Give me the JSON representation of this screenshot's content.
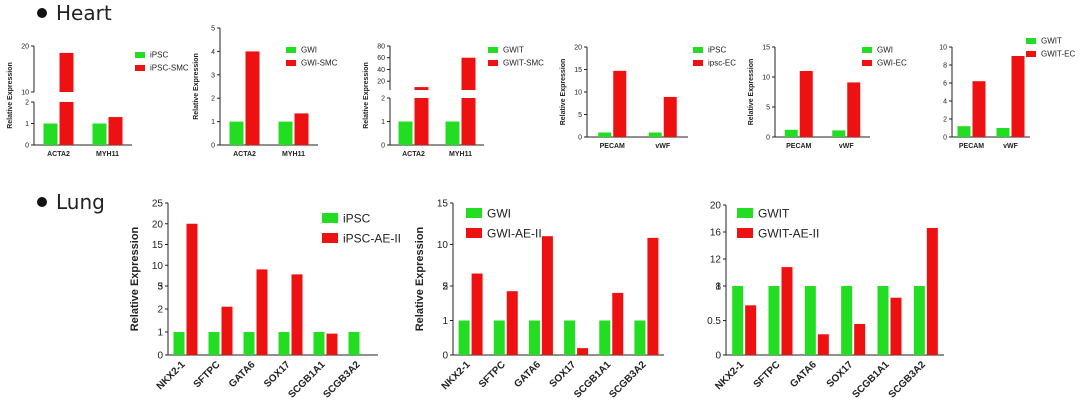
{
  "sections": [
    {
      "title": "Heart"
    },
    {
      "title": "Lung"
    }
  ],
  "colors": {
    "control": "#22dd22",
    "differentiated": "#ee1111",
    "axis": "#222222"
  },
  "chart_data": [
    {
      "type": "bar",
      "section": "Heart",
      "ylabel": "Relative Expression",
      "categories": [
        "ACTA2",
        "MYH11"
      ],
      "y_segments": [
        {
          "range": [
            0,
            2
          ],
          "ticks": [
            0,
            1,
            2
          ]
        },
        {
          "range": [
            10,
            20
          ],
          "ticks": [
            10,
            20
          ]
        }
      ],
      "series": [
        {
          "name": "iPSC",
          "values": [
            1,
            1
          ]
        },
        {
          "name": "iPSC-SMC",
          "values": [
            18.5,
            1.3
          ]
        }
      ]
    },
    {
      "type": "bar",
      "section": "Heart",
      "ylabel": "Relative Expression",
      "categories": [
        "ACTA2",
        "MYH11"
      ],
      "y_segments": [
        {
          "range": [
            0,
            5
          ],
          "ticks": [
            0,
            1,
            2,
            3,
            4,
            5
          ]
        }
      ],
      "series": [
        {
          "name": "GWI",
          "values": [
            1,
            1
          ]
        },
        {
          "name": "GWI-SMC",
          "values": [
            4,
            1.35
          ]
        }
      ]
    },
    {
      "type": "bar",
      "section": "Heart",
      "ylabel": "Relative Expression",
      "categories": [
        "ACTA2",
        "MYH11"
      ],
      "y_segments": [
        {
          "range": [
            0,
            2
          ],
          "ticks": [
            0,
            1,
            2
          ]
        },
        {
          "range": [
            5,
            80
          ],
          "ticks": [
            20,
            40,
            60,
            80
          ]
        }
      ],
      "series": [
        {
          "name": "GWIT",
          "values": [
            1,
            1
          ]
        },
        {
          "name": "GWIT-SMC",
          "values": [
            10,
            60
          ]
        }
      ]
    },
    {
      "type": "bar",
      "section": "Heart",
      "ylabel": "Relative Expression",
      "categories": [
        "PECAM",
        "vWF"
      ],
      "y_segments": [
        {
          "range": [
            0,
            20
          ],
          "ticks": [
            0,
            5,
            10,
            15,
            20
          ]
        }
      ],
      "series": [
        {
          "name": "iPSC",
          "values": [
            1,
            1
          ]
        },
        {
          "name": "ipsc-EC",
          "values": [
            14.7,
            8.9
          ]
        }
      ]
    },
    {
      "type": "bar",
      "section": "Heart",
      "ylabel": "Relative Expression",
      "categories": [
        "PECAM",
        "vWF"
      ],
      "y_segments": [
        {
          "range": [
            0,
            15
          ],
          "ticks": [
            0,
            5,
            10,
            15
          ]
        }
      ],
      "series": [
        {
          "name": "GWI",
          "values": [
            1.2,
            1.1
          ]
        },
        {
          "name": "GWI-EC",
          "values": [
            11,
            9.1
          ]
        }
      ]
    },
    {
      "type": "bar",
      "section": "Heart",
      "ylabel": "",
      "categories": [
        "PECAM",
        "vWF"
      ],
      "y_segments": [
        {
          "range": [
            0,
            10
          ],
          "ticks": [
            0,
            2,
            4,
            6,
            8,
            10
          ]
        }
      ],
      "series": [
        {
          "name": "GWIT",
          "values": [
            1.2,
            1
          ]
        },
        {
          "name": "GWIT-EC",
          "values": [
            6.2,
            9
          ]
        }
      ]
    },
    {
      "type": "bar",
      "section": "Lung",
      "ylabel": "Relative Expression",
      "categories": [
        "NKX2-1",
        "SFTPC",
        "GATA6",
        "SOX17",
        "SCGB1A1",
        "SCGB3A2"
      ],
      "y_segments": [
        {
          "range": [
            0,
            3
          ],
          "ticks": [
            0,
            1,
            2,
            3
          ]
        },
        {
          "range": [
            5,
            25
          ],
          "ticks": [
            5,
            10,
            15,
            20,
            25
          ]
        }
      ],
      "series": [
        {
          "name": "iPSC",
          "values": [
            1,
            1,
            1,
            1,
            1,
            1
          ]
        },
        {
          "name": "iPSC-AE-II",
          "values": [
            20,
            2.1,
            9,
            7.8,
            0.93,
            0
          ]
        }
      ]
    },
    {
      "type": "bar",
      "section": "Lung",
      "ylabel": "Relative Expression",
      "categories": [
        "NKX2-1",
        "SFTPC",
        "GATA6",
        "SOX17",
        "SCGB1A1",
        "SCGB3A2"
      ],
      "y_segments": [
        {
          "range": [
            0,
            2
          ],
          "ticks": [
            0,
            1,
            2
          ]
        },
        {
          "range": [
            5,
            15
          ],
          "ticks": [
            5,
            10,
            15
          ]
        }
      ],
      "series": [
        {
          "name": "GWI",
          "values": [
            1,
            1,
            1,
            1,
            1,
            1
          ]
        },
        {
          "name": "GWI-AE-II",
          "values": [
            6.5,
            1.85,
            11,
            0.2,
            1.8,
            10.8
          ]
        }
      ]
    },
    {
      "type": "bar",
      "section": "Lung",
      "ylabel": "",
      "categories": [
        "NKX2-1",
        "SFTPC",
        "GATA6",
        "SOX17",
        "SCGB1A1",
        "SCGB3A2"
      ],
      "y_segments": [
        {
          "range": [
            0,
            1
          ],
          "ticks": [
            0.0,
            0.5,
            1.0
          ]
        },
        {
          "range": [
            8,
            20
          ],
          "ticks": [
            8,
            12,
            16,
            20
          ]
        }
      ],
      "series": [
        {
          "name": "GWIT",
          "values": [
            1,
            1,
            1,
            1,
            1,
            1
          ]
        },
        {
          "name": "GWIT-AE-II",
          "values": [
            0.72,
            10.8,
            0.3,
            0.45,
            0.83,
            16.6
          ]
        }
      ]
    }
  ]
}
